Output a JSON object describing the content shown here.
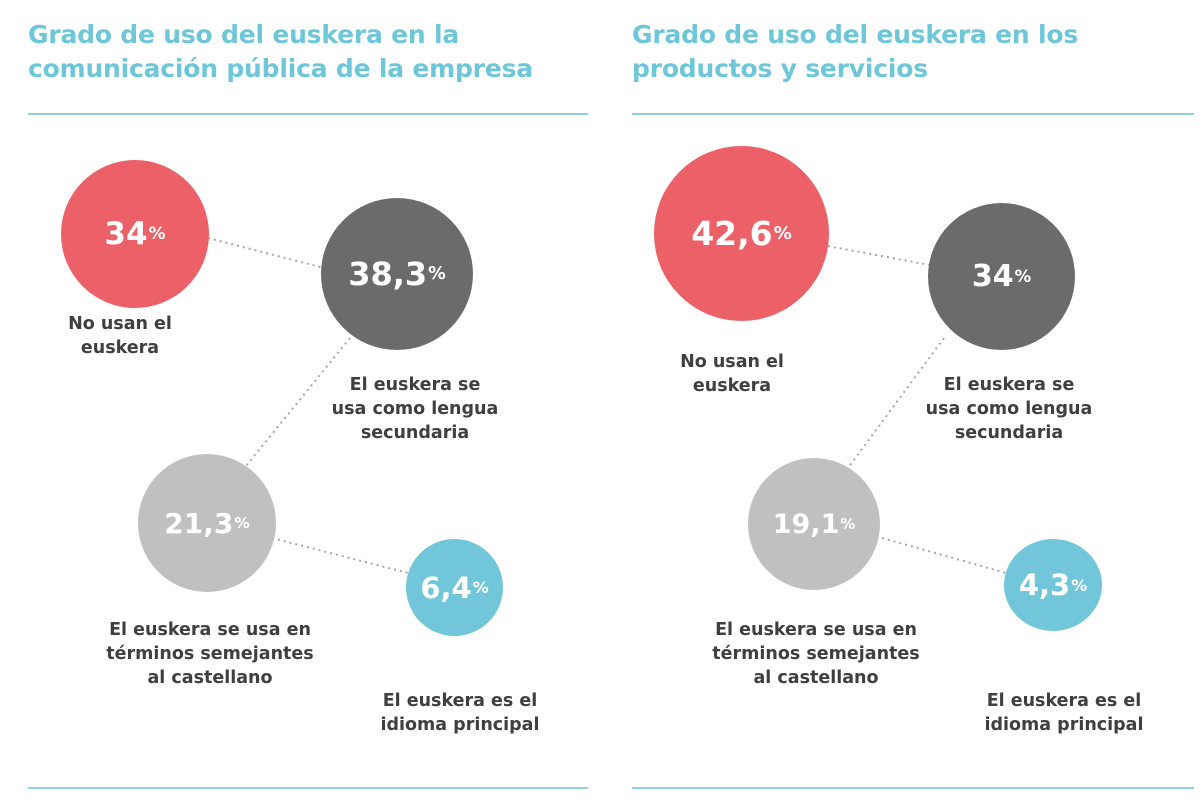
{
  "panels": [
    {
      "title_line1": "Grado de uso del euskera en la",
      "title_line2": "comunicación pública de la empresa",
      "categories": [
        "No usan el euskera",
        "El euskera se usa como lengua secundaria",
        "El euskera se usa en términos semejantes al castellano",
        "El euskera es el idioma principal"
      ],
      "values": [
        34,
        38.3,
        21.3,
        6.4
      ],
      "display": [
        "34",
        "38,3",
        "21,3",
        "6,4"
      ],
      "unit": "%",
      "labels": [
        [
          "No usan el",
          "euskera"
        ],
        [
          "El euskera se",
          "usa como lengua",
          "secundaria"
        ],
        [
          "El euskera se usa en",
          "términos semejantes",
          "al castellano"
        ],
        [
          "El euskera es el",
          "idioma principal"
        ]
      ]
    },
    {
      "title_line1": "Grado de uso del euskera en los",
      "title_line2": "productos y servicios",
      "categories": [
        "No usan el euskera",
        "El euskera se usa como lengua secundaria",
        "El euskera se usa en términos semejantes al castellano",
        "El euskera es el idioma principal"
      ],
      "values": [
        42.6,
        34,
        19.1,
        4.3
      ],
      "display": [
        "42,6",
        "34",
        "19,1",
        "4,3"
      ],
      "unit": "%",
      "labels": [
        [
          "No usan el",
          "euskera"
        ],
        [
          "El euskera se",
          "usa como lengua",
          "secundaria"
        ],
        [
          "El euskera se usa en",
          "términos semejantes",
          "al castellano"
        ],
        [
          "El euskera es el",
          "idioma principal"
        ]
      ]
    }
  ],
  "colors": [
    "#ec6068",
    "#6b6b6b",
    "#c0c0c0",
    "#72c6da"
  ],
  "chart_data": [
    {
      "type": "bubble",
      "title": "Grado de uso del euskera en la comunicación pública de la empresa",
      "categories": [
        "No usan el euskera",
        "El euskera se usa como lengua secundaria",
        "El euskera se usa en términos semejantes al castellano",
        "El euskera es el idioma principal"
      ],
      "values": [
        34,
        38.3,
        21.3,
        6.4
      ],
      "unit": "%"
    },
    {
      "type": "bubble",
      "title": "Grado de uso del euskera en los productos y servicios",
      "categories": [
        "No usan el euskera",
        "El euskera se usa como lengua secundaria",
        "El euskera se usa en términos semejantes al castellano",
        "El euskera es el idioma principal"
      ],
      "values": [
        42.6,
        34,
        19.1,
        4.3
      ],
      "unit": "%"
    }
  ]
}
